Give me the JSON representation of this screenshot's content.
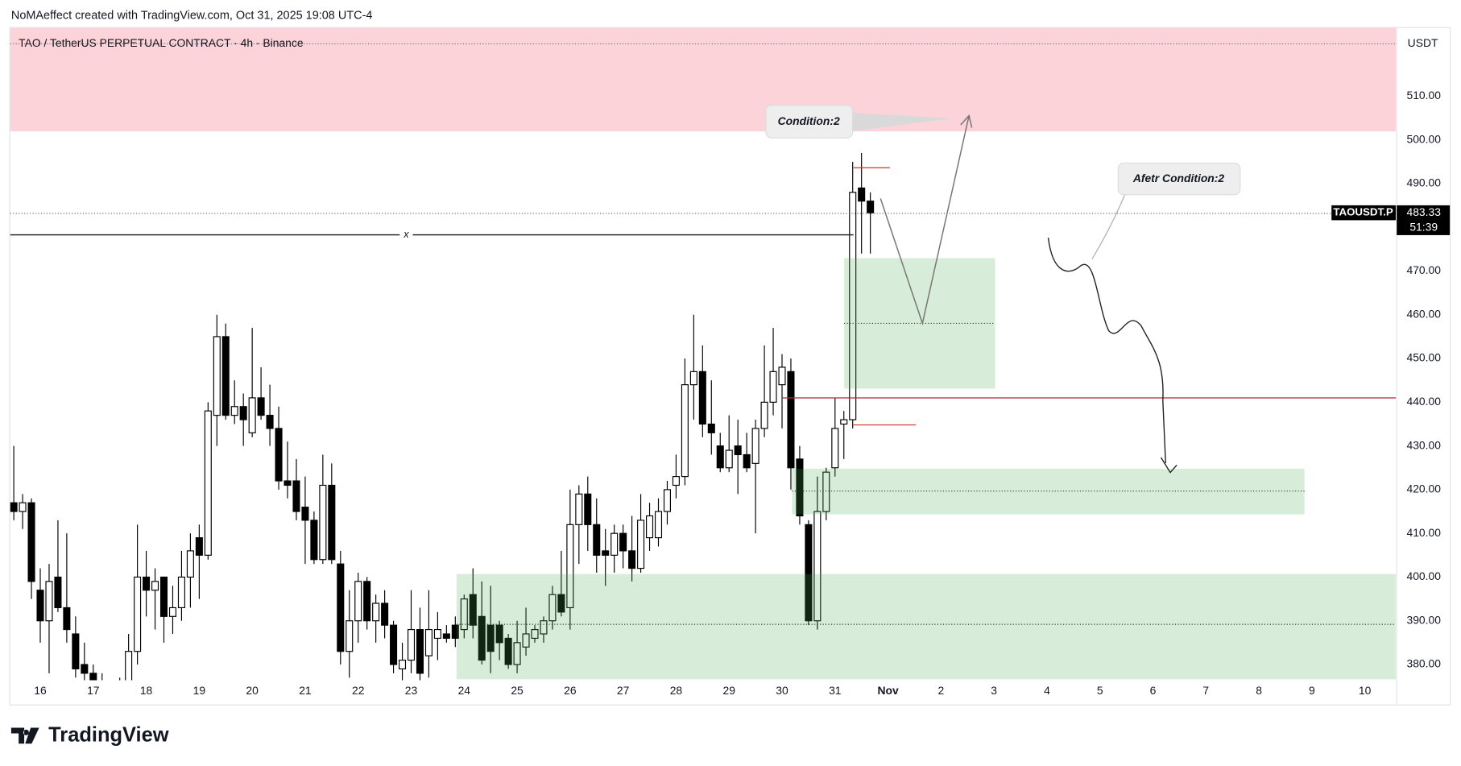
{
  "header": {
    "credit": "NoMAeffect created with TradingView.com, Oct 31, 2025 19:08 UTC-4",
    "symbol": "TAO / TetherUS PERPETUAL CONTRACT · 4h · Binance"
  },
  "chart_data": {
    "type": "candlestick",
    "open": [
      417,
      415,
      417,
      397,
      390,
      400,
      393,
      387,
      380,
      378,
      376,
      372,
      370,
      375,
      383,
      400,
      397,
      400,
      391,
      393,
      400,
      409,
      405,
      437,
      455,
      437,
      439,
      433,
      441,
      437,
      434,
      422,
      422,
      416,
      413,
      404,
      421,
      403,
      383,
      390,
      399,
      390,
      394,
      389,
      379,
      381,
      388,
      382,
      386,
      387,
      389,
      388,
      396,
      391,
      389,
      389,
      386,
      380,
      384,
      386,
      387,
      390,
      396,
      393,
      412,
      419,
      412,
      406,
      405,
      410,
      406,
      402,
      409,
      409,
      415,
      421,
      423,
      444,
      447,
      435,
      430,
      425,
      430,
      428,
      426,
      434,
      440,
      444,
      447,
      427,
      412,
      390,
      415,
      425,
      435,
      436,
      489,
      486
    ],
    "high": [
      430,
      419,
      418,
      402,
      403,
      413,
      410,
      391,
      385,
      380,
      378,
      375,
      377,
      387,
      412,
      406,
      402,
      400,
      398,
      406,
      410,
      412,
      440,
      460,
      458,
      445,
      442,
      457,
      448,
      444,
      439,
      431,
      427,
      423,
      415,
      428,
      426,
      406,
      397,
      401,
      400,
      396,
      397,
      390,
      385,
      397,
      393,
      397,
      392,
      389,
      391,
      396,
      402,
      399,
      398,
      390,
      387,
      390,
      393,
      389,
      391,
      398,
      406,
      420,
      421,
      423,
      418,
      411,
      412,
      412,
      414,
      419,
      417,
      418,
      422,
      428,
      450,
      460,
      453,
      445,
      433,
      437,
      436,
      433,
      436,
      453,
      457,
      451,
      450,
      430,
      413,
      423,
      425,
      441,
      438,
      495,
      497,
      488
    ],
    "low": [
      413,
      411,
      395,
      385,
      378,
      392,
      385,
      377,
      375,
      372,
      370,
      368,
      368,
      374,
      380,
      391,
      388,
      385,
      387,
      390,
      393,
      395,
      404,
      430,
      436,
      435,
      430,
      432,
      436,
      430,
      420,
      418,
      413,
      403,
      403,
      403,
      403,
      380,
      377,
      385,
      388,
      385,
      386,
      378,
      376,
      378,
      375,
      377,
      381,
      385,
      384,
      386,
      386,
      380,
      378,
      381,
      379,
      378,
      382,
      385,
      385,
      388,
      391,
      388,
      403,
      406,
      401,
      398,
      401,
      402,
      399,
      401,
      406,
      407,
      412,
      418,
      421,
      436,
      432,
      428,
      424,
      424,
      419,
      424,
      410,
      432,
      437,
      434,
      420,
      412,
      389,
      388,
      413,
      423,
      427,
      434,
      474,
      474
    ],
    "close": [
      415,
      417,
      399,
      390,
      399,
      393,
      388,
      379,
      378,
      376,
      372,
      370,
      375,
      383,
      400,
      397,
      399,
      391,
      393,
      400,
      406,
      405,
      438,
      455,
      437,
      439,
      436,
      441,
      437,
      434,
      422,
      421,
      415,
      413,
      404,
      421,
      404,
      383,
      390,
      399,
      390,
      394,
      389,
      380,
      381,
      388,
      378,
      388,
      388,
      386,
      386,
      395,
      389,
      381,
      383,
      385,
      380,
      385,
      387,
      388,
      390,
      396,
      392,
      412,
      419,
      412,
      405,
      405,
      410,
      406,
      402,
      413,
      414,
      415,
      420,
      423,
      444,
      447,
      435,
      433,
      425,
      429,
      428,
      425,
      434,
      440,
      447,
      448,
      425,
      414,
      390,
      415,
      424,
      434,
      436,
      488,
      486,
      483.33
    ],
    "up_color": "#ffffff",
    "down_color": "#000000",
    "xlim": [
      -0.4,
      156.5
    ],
    "xticks": [
      {
        "value": 3,
        "label": "16"
      },
      {
        "value": 9,
        "label": "17"
      },
      {
        "value": 15,
        "label": "18"
      },
      {
        "value": 21,
        "label": "19"
      },
      {
        "value": 27,
        "label": "20"
      },
      {
        "value": 33,
        "label": "21"
      },
      {
        "value": 39,
        "label": "22"
      },
      {
        "value": 45,
        "label": "23"
      },
      {
        "value": 51,
        "label": "24"
      },
      {
        "value": 57,
        "label": "25"
      },
      {
        "value": 63,
        "label": "26"
      },
      {
        "value": 69,
        "label": "27"
      },
      {
        "value": 75,
        "label": "28"
      },
      {
        "value": 81,
        "label": "29"
      },
      {
        "value": 87,
        "label": "30"
      },
      {
        "value": 93,
        "label": "31"
      },
      {
        "value": 99,
        "label": "Nov"
      },
      {
        "value": 105,
        "label": "2"
      },
      {
        "value": 111,
        "label": "3"
      },
      {
        "value": 117,
        "label": "4"
      },
      {
        "value": 123,
        "label": "5"
      },
      {
        "value": 129,
        "label": "6"
      },
      {
        "value": 135,
        "label": "7"
      },
      {
        "value": 141,
        "label": "8"
      },
      {
        "value": 147,
        "label": "9"
      },
      {
        "value": 153,
        "label": "10"
      }
    ],
    "ylim": [
      376.4,
      525.6
    ],
    "yticks": [
      {
        "value": 380,
        "label": "380.00"
      },
      {
        "value": 390,
        "label": "390.00"
      },
      {
        "value": 400,
        "label": "400.00"
      },
      {
        "value": 410,
        "label": "410.00"
      },
      {
        "value": 420,
        "label": "420.00"
      },
      {
        "value": 430,
        "label": "430.00"
      },
      {
        "value": 440,
        "label": "440.00"
      },
      {
        "value": 450,
        "label": "450.00"
      },
      {
        "value": 460,
        "label": "460.00"
      },
      {
        "value": 470,
        "label": "470.00"
      },
      {
        "value": 490,
        "label": "490.00"
      },
      {
        "value": 500,
        "label": "500.00"
      },
      {
        "value": 510,
        "label": "510.00"
      }
    ],
    "grid": false,
    "currency": "USDT",
    "symbol_badge": "TAOUSDT.P",
    "countdown": "51:39",
    "annotations": [
      "Condition:2",
      "Afetr Condition:2",
      "x"
    ]
  },
  "footer": {
    "brand": "TradingView"
  }
}
